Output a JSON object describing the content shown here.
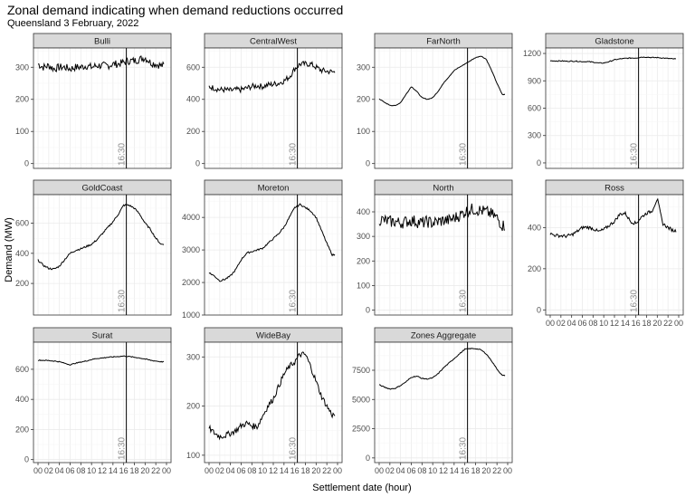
{
  "chart_data": {
    "type": "line",
    "title": "Zonal demand indicating when demand reductions occurred",
    "subtitle": "Queensland 3 February, 2022",
    "xlabel": "Settlement date (hour)",
    "ylabel": "Demand (MW)",
    "x_ticks": [
      "00",
      "02",
      "04",
      "06",
      "08",
      "10",
      "12",
      "14",
      "16",
      "18",
      "20",
      "22",
      "00"
    ],
    "x_range_hours": [
      0,
      24
    ],
    "vline": {
      "hour": 16.5,
      "label": "16:30"
    },
    "grid": true,
    "series": [
      {
        "name": "Bulli",
        "ylim": [
          -15,
          360
        ],
        "yticks": [
          0,
          100,
          200,
          300
        ],
        "x": [
          0,
          1,
          2,
          3,
          4,
          5,
          6,
          7,
          8,
          9,
          10,
          11,
          12,
          13,
          14,
          15,
          16,
          17,
          18,
          19,
          20,
          21,
          22,
          23
        ],
        "values": [
          310,
          300,
          305,
          295,
          300,
          300,
          295,
          300,
          300,
          305,
          300,
          305,
          305,
          305,
          310,
          310,
          315,
          320,
          320,
          325,
          330,
          315,
          310,
          305
        ],
        "noise": 12
      },
      {
        "name": "CentralWest",
        "ylim": [
          -30,
          720
        ],
        "yticks": [
          0,
          200,
          400,
          600
        ],
        "x": [
          0,
          1,
          2,
          3,
          4,
          5,
          6,
          7,
          8,
          9,
          10,
          11,
          12,
          13,
          14,
          15,
          16,
          17,
          18,
          19,
          20,
          21,
          22,
          23
        ],
        "values": [
          480,
          470,
          460,
          460,
          455,
          460,
          460,
          470,
          480,
          485,
          480,
          490,
          495,
          500,
          515,
          540,
          590,
          620,
          620,
          620,
          600,
          580,
          575,
          570
        ],
        "noise": 18
      },
      {
        "name": "FarNorth",
        "ylim": [
          -15,
          360
        ],
        "yticks": [
          0,
          100,
          200,
          300
        ],
        "x": [
          0,
          1,
          2,
          3,
          4,
          5,
          6,
          7,
          8,
          9,
          10,
          11,
          12,
          13,
          14,
          15,
          16,
          17,
          18,
          19,
          20,
          21,
          22,
          23
        ],
        "values": [
          202,
          190,
          182,
          180,
          190,
          215,
          240,
          225,
          205,
          200,
          205,
          225,
          250,
          270,
          290,
          300,
          310,
          320,
          330,
          335,
          325,
          290,
          250,
          215
        ],
        "noise": 1
      },
      {
        "name": "Gladstone",
        "ylim": [
          -60,
          1260
        ],
        "yticks": [
          0,
          300,
          600,
          900,
          1200
        ],
        "x": [
          0,
          1,
          2,
          3,
          4,
          5,
          6,
          7,
          8,
          9,
          10,
          11,
          12,
          13,
          14,
          15,
          16,
          17,
          18,
          19,
          20,
          21,
          22,
          23
        ],
        "values": [
          1120,
          1118,
          1118,
          1115,
          1115,
          1115,
          1110,
          1110,
          1105,
          1095,
          1095,
          1110,
          1130,
          1140,
          1145,
          1150,
          1150,
          1160,
          1160,
          1155,
          1155,
          1150,
          1145,
          1140
        ],
        "noise": 5
      },
      {
        "name": "GoldCoast",
        "ylim": [
          -10,
          790
        ],
        "yticks": [
          200,
          400,
          600
        ],
        "x": [
          0,
          1,
          2,
          3,
          4,
          5,
          6,
          7,
          8,
          9,
          10,
          11,
          12,
          13,
          14,
          15,
          16,
          17,
          18,
          19,
          20,
          21,
          22,
          23
        ],
        "values": [
          355,
          320,
          300,
          295,
          315,
          360,
          400,
          420,
          430,
          445,
          460,
          490,
          530,
          570,
          610,
          660,
          720,
          720,
          700,
          660,
          600,
          560,
          500,
          460
        ],
        "noise": 6
      },
      {
        "name": "Moreton",
        "ylim": [
          1000,
          4700
        ],
        "yticks": [
          1000,
          2000,
          3000,
          4000
        ],
        "x": [
          0,
          1,
          2,
          3,
          4,
          5,
          6,
          7,
          8,
          9,
          10,
          11,
          12,
          13,
          14,
          15,
          16,
          17,
          18,
          19,
          20,
          21,
          22,
          23
        ],
        "values": [
          2300,
          2200,
          2050,
          2100,
          2200,
          2400,
          2700,
          2900,
          2950,
          3000,
          3050,
          3200,
          3350,
          3500,
          3700,
          4000,
          4300,
          4400,
          4300,
          4200,
          4000,
          3600,
          3200,
          2850
        ],
        "noise": 25
      },
      {
        "name": "North",
        "ylim": [
          -20,
          470
        ],
        "yticks": [
          0,
          100,
          200,
          300,
          400
        ],
        "x": [
          0,
          1,
          2,
          3,
          4,
          5,
          6,
          7,
          8,
          9,
          10,
          11,
          12,
          13,
          14,
          15,
          16,
          17,
          18,
          19,
          20,
          21,
          22,
          23
        ],
        "values": [
          370,
          365,
          360,
          360,
          355,
          360,
          365,
          360,
          355,
          360,
          355,
          360,
          365,
          365,
          375,
          385,
          400,
          410,
          410,
          405,
          400,
          390,
          375,
          345
        ],
        "noise": 25
      },
      {
        "name": "Ross",
        "ylim": [
          -25,
          560
        ],
        "yticks": [
          0,
          200,
          400
        ],
        "x": [
          0,
          1,
          2,
          3,
          4,
          5,
          6,
          7,
          8,
          9,
          10,
          11,
          12,
          13,
          14,
          15,
          16,
          17,
          18,
          19,
          20,
          21,
          22,
          23
        ],
        "values": [
          370,
          362,
          360,
          358,
          365,
          380,
          400,
          402,
          395,
          380,
          390,
          410,
          430,
          465,
          470,
          430,
          420,
          450,
          470,
          480,
          540,
          420,
          400,
          385
        ],
        "noise": 8
      },
      {
        "name": "Surat",
        "ylim": [
          -20,
          780
        ],
        "yticks": [
          0,
          200,
          400,
          600
        ],
        "x": [
          0,
          1,
          2,
          3,
          4,
          5,
          6,
          7,
          8,
          9,
          10,
          11,
          12,
          13,
          14,
          15,
          16,
          17,
          18,
          19,
          20,
          21,
          22,
          23
        ],
        "values": [
          660,
          660,
          658,
          655,
          650,
          640,
          630,
          640,
          648,
          655,
          665,
          672,
          675,
          680,
          682,
          685,
          688,
          685,
          680,
          675,
          668,
          660,
          655,
          650
        ],
        "noise": 3
      },
      {
        "name": "WideBay",
        "ylim": [
          85,
          330
        ],
        "yticks": [
          100,
          200,
          300
        ],
        "x": [
          0,
          1,
          2,
          3,
          4,
          5,
          6,
          7,
          8,
          9,
          10,
          11,
          12,
          13,
          14,
          15,
          16,
          17,
          18,
          19,
          20,
          21,
          22,
          23
        ],
        "values": [
          155,
          145,
          138,
          140,
          145,
          150,
          160,
          165,
          160,
          158,
          180,
          200,
          215,
          240,
          265,
          280,
          290,
          305,
          305,
          280,
          250,
          220,
          200,
          182
        ],
        "noise": 6
      },
      {
        "name": "Zones Aggregate",
        "ylim": [
          -400,
          9900
        ],
        "yticks": [
          0,
          2500,
          5000,
          7500
        ],
        "x": [
          0,
          1,
          2,
          3,
          4,
          5,
          6,
          7,
          8,
          9,
          10,
          11,
          12,
          13,
          14,
          15,
          16,
          17,
          18,
          19,
          20,
          21,
          22,
          23
        ],
        "values": [
          6250,
          6050,
          5900,
          5950,
          6200,
          6500,
          6900,
          7000,
          6800,
          6750,
          6850,
          7200,
          7700,
          8100,
          8500,
          8900,
          9300,
          9350,
          9350,
          9250,
          8900,
          8300,
          7600,
          7050
        ],
        "noise": 40
      }
    ]
  }
}
